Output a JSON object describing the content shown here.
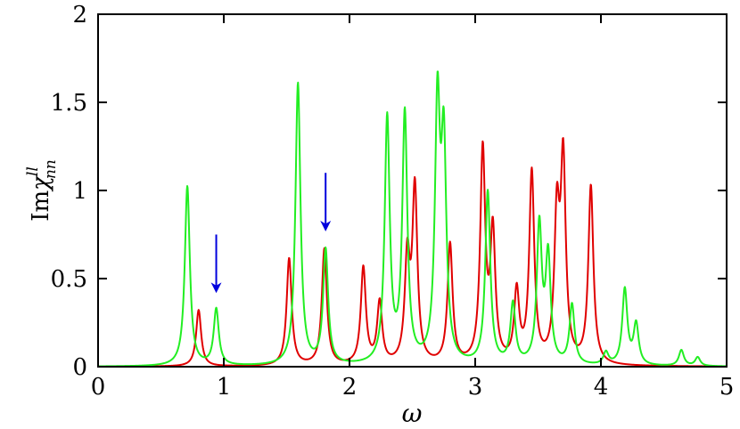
{
  "chart_data": {
    "type": "line",
    "xlabel": "ω",
    "ylabel": {
      "prefix": "Im",
      "symbol": "χ",
      "superscript": "ll",
      "subscript": "nn"
    },
    "xlim": [
      0,
      5
    ],
    "ylim": [
      0,
      2
    ],
    "xticks": [
      0,
      1,
      2,
      3,
      4,
      5
    ],
    "xtick_labels": [
      "0",
      "1",
      "2",
      "3",
      "4",
      "5"
    ],
    "yticks": [
      0,
      0.5,
      1,
      1.5,
      2
    ],
    "ytick_labels": [
      "0",
      "0.5",
      "1",
      "1.5",
      "2"
    ],
    "grid": false,
    "legend": "none",
    "lorentzian_width": 0.024,
    "series": [
      {
        "color": "#e00000",
        "peaks": [
          [
            0.8,
            0.32
          ],
          [
            1.52,
            0.61
          ],
          [
            1.8,
            0.66
          ],
          [
            2.11,
            0.55
          ],
          [
            2.24,
            0.35
          ],
          [
            2.46,
            0.58
          ],
          [
            2.52,
            0.98
          ],
          [
            2.8,
            0.68
          ],
          [
            3.06,
            1.2
          ],
          [
            3.14,
            0.73
          ],
          [
            3.33,
            0.4
          ],
          [
            3.45,
            1.08
          ],
          [
            3.65,
            0.8
          ],
          [
            3.7,
            1.12
          ],
          [
            3.92,
            1.01
          ]
        ]
      },
      {
        "color": "#22ee22",
        "peaks": [
          [
            0.71,
            1.02
          ],
          [
            0.94,
            0.32
          ],
          [
            1.59,
            1.6
          ],
          [
            1.81,
            0.65
          ],
          [
            2.3,
            1.39
          ],
          [
            2.44,
            1.41
          ],
          [
            2.7,
            1.43
          ],
          [
            2.75,
            1.18
          ],
          [
            3.1,
            0.98
          ],
          [
            3.3,
            0.34
          ],
          [
            3.51,
            0.78
          ],
          [
            3.58,
            0.6
          ],
          [
            3.77,
            0.34
          ],
          [
            4.04,
            0.07
          ],
          [
            4.19,
            0.43
          ],
          [
            4.28,
            0.23
          ],
          [
            4.64,
            0.09
          ],
          [
            4.77,
            0.05
          ]
        ]
      }
    ],
    "annotations": [
      {
        "type": "arrow",
        "color": "#0000dd",
        "x": 0.94,
        "y_from": 0.75,
        "y_to": 0.43
      },
      {
        "type": "arrow",
        "color": "#0000dd",
        "x": 1.81,
        "y_from": 1.1,
        "y_to": 0.78
      }
    ]
  }
}
